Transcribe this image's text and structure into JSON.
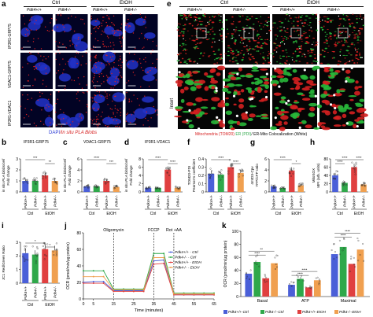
{
  "panels": {
    "a": {
      "letter": "a",
      "groups": [
        "Ctrl",
        "EtOH"
      ],
      "columns": [
        "Pdk4+/+",
        "Pdk4-/-",
        "Pdk4+/+",
        "Pdk4-/-"
      ],
      "rows": [
        "IP3R1-GRP75",
        "VDAC1-GRP75",
        "IP3R1-VDAC1"
      ],
      "caption_dapi": "DAPI",
      "caption_rest": "/In situ PLA Blobs"
    },
    "e": {
      "letter": "e",
      "groups": [
        "Ctrl",
        "EtOH"
      ],
      "columns": [
        "Pdk4+/+",
        "Pdk4-/-",
        "Pdk4+/+",
        "Pdk4-/-"
      ],
      "inset_label": "Inset",
      "legend_mito": "Mitochondria (TOM20)",
      "legend_er": "ER (PDI)",
      "legend_coloc": "/ ER-Mito Colocalization (White)"
    },
    "b": {
      "letter": "b",
      "title": "IP3R1-GRP75",
      "ylabel": "in situ PLA blobs/cell\nFold change",
      "sig": [
        "***",
        "**"
      ]
    },
    "c": {
      "letter": "c",
      "title": "VDAC1-GRP75",
      "ylabel": "in situ PLA blobs/cell\nFold change",
      "sig": [
        "****",
        "***"
      ]
    },
    "d": {
      "letter": "d",
      "title": "IP3R1-VDAC1",
      "ylabel": "in situ PLA blobs/cell\nFold change",
      "sig": [
        "****",
        "****"
      ]
    },
    "f": {
      "letter": "f",
      "ylabel": "TOM20-PDI\nPearson's coefficient",
      "sig": [
        "****",
        "****"
      ]
    },
    "g": {
      "letter": "g",
      "ylabel": "4mtD3-Cpv\nYFP/CFP ratio",
      "sig": [
        "****",
        "*"
      ]
    },
    "h": {
      "letter": "h",
      "ylabel": "MitoSOX\nMFI (arb. units)",
      "sig": [
        "****",
        "****",
        "****"
      ]
    },
    "i": {
      "letter": "i",
      "ylabel": "JC1 Red/Green Ratio",
      "sig": [
        "*",
        "*"
      ]
    },
    "j": {
      "letter": "j",
      "ylabel": "OCR (pmol/min/μg protein)",
      "xlabel": "Time (minutes)",
      "injections": [
        "Oligomycin",
        "FCCP",
        "Rot +AA"
      ],
      "legend": [
        "Pdk4+/+ - Ctrl",
        "Pdk4-/- - Ctrl",
        "Pdk4+/+ - EtOH",
        "Pdk4-/- - EtOH"
      ]
    },
    "k": {
      "letter": "k",
      "ylabel": "OCR (pmol/min/μg protein)",
      "categories": [
        "Basal",
        "ATP",
        "Maximal"
      ],
      "sig": [
        "****",
        "**",
        "****",
        "****",
        "****",
        "****",
        "****",
        "**"
      ],
      "legend": [
        "Pdk4+/+-Ctrl",
        "Pdk4-/--Ctrl",
        "Pdk4+/+-EtOH",
        "Pdk4-/--EtOH"
      ]
    },
    "xcats": [
      "Pdk4+/+",
      "Pdk4-/-",
      "Pdk4+/+",
      "Pdk4-/-"
    ],
    "xgroups": [
      "Ctrl",
      "EtOH"
    ]
  },
  "colors": {
    "wt_ctrl": "#4a5fd8",
    "ko_ctrl": "#2fa84a",
    "wt_etoh": "#e04040",
    "ko_etoh": "#f0a050"
  },
  "chart_data": [
    {
      "type": "bar",
      "id": "b",
      "categories": [
        "Pdk4+/+ Ctrl",
        "Pdk4-/- Ctrl",
        "Pdk4+/+ EtOH",
        "Pdk4-/- EtOH"
      ],
      "values": [
        1.0,
        1.0,
        1.5,
        1.0
      ],
      "ylim": [
        0,
        3
      ],
      "yticks": [
        0,
        1,
        2,
        3
      ]
    },
    {
      "type": "bar",
      "id": "c",
      "categories": [
        "Pdk4+/+ Ctrl",
        "Pdk4-/- Ctrl",
        "Pdk4+/+ EtOH",
        "Pdk4-/- EtOH"
      ],
      "values": [
        1.0,
        1.0,
        2.0,
        0.9
      ],
      "ylim": [
        0,
        6
      ],
      "yticks": [
        0,
        2,
        4,
        6
      ]
    },
    {
      "type": "bar",
      "id": "d",
      "categories": [
        "Pdk4+/+ Ctrl",
        "Pdk4-/- Ctrl",
        "Pdk4+/+ EtOH",
        "Pdk4-/- EtOH"
      ],
      "values": [
        1.0,
        1.0,
        5.4,
        1.0
      ],
      "ylim": [
        0,
        8
      ],
      "yticks": [
        0,
        2,
        4,
        6,
        8
      ]
    },
    {
      "type": "bar",
      "id": "f",
      "categories": [
        "Pdk4+/+ Ctrl",
        "Pdk4-/- Ctrl",
        "Pdk4+/+ EtOH",
        "Pdk4-/- EtOH"
      ],
      "values": [
        0.22,
        0.21,
        0.3,
        0.23
      ],
      "ylim": [
        0,
        0.4
      ],
      "yticks": [
        0.0,
        0.1,
        0.2,
        0.3,
        0.4
      ]
    },
    {
      "type": "bar",
      "id": "g",
      "categories": [
        "Pdk4+/+ Ctrl",
        "Pdk4-/- Ctrl",
        "Pdk4+/+ EtOH",
        "Pdk4-/- EtOH"
      ],
      "values": [
        1.0,
        0.7,
        3.9,
        1.2
      ],
      "ylim": [
        0,
        6
      ],
      "yticks": [
        0,
        2,
        4,
        6
      ]
    },
    {
      "type": "bar",
      "id": "h",
      "categories": [
        "Pdk4+/+ Ctrl",
        "Pdk4-/- Ctrl",
        "Pdk4+/+ EtOH",
        "Pdk4-/- EtOH"
      ],
      "values": [
        40,
        22,
        60,
        18
      ],
      "ylim": [
        0,
        80
      ],
      "yticks": [
        0,
        20,
        40,
        60,
        80
      ]
    },
    {
      "type": "bar",
      "id": "i",
      "categories": [
        "Pdk4+/+ Ctrl",
        "Pdk4-/- Ctrl",
        "Pdk4+/+ EtOH",
        "Pdk4-/- EtOH"
      ],
      "values": [
        2.2,
        2.1,
        2.5,
        2.4
      ],
      "ylim": [
        0,
        3
      ],
      "yticks": [
        0,
        1,
        2,
        3
      ]
    },
    {
      "type": "line",
      "id": "j",
      "x": [
        0,
        5,
        10,
        15,
        20,
        25,
        30,
        35,
        40,
        45,
        50,
        55,
        60,
        65
      ],
      "series": [
        {
          "name": "Pdk4+/+ - Ctrl",
          "values": [
            20,
            21,
            21,
            10,
            10,
            10,
            10,
            46,
            47,
            5,
            5,
            5,
            5,
            5
          ]
        },
        {
          "name": "Pdk4-/- - Ctrl",
          "values": [
            34,
            34,
            34,
            12,
            12,
            12,
            12,
            55,
            55,
            7,
            7,
            7,
            7,
            7
          ]
        },
        {
          "name": "Pdk4+/+ - EtOH",
          "values": [
            19,
            19,
            19,
            9,
            9,
            9,
            9,
            42,
            43,
            5,
            5,
            5,
            5,
            5
          ]
        },
        {
          "name": "Pdk4-/- - EtOH",
          "values": [
            27,
            27,
            27,
            11,
            11,
            11,
            11,
            50,
            50,
            6,
            6,
            6,
            6,
            6
          ]
        }
      ],
      "xlim": [
        0,
        65
      ],
      "ylim": [
        0,
        80
      ],
      "xticks": [
        0,
        5,
        15,
        25,
        35,
        45,
        55,
        65
      ],
      "yticks": [
        0,
        20,
        40,
        60,
        80
      ],
      "markers_at": [
        15,
        35,
        45
      ]
    },
    {
      "type": "bar",
      "id": "k",
      "categories": [
        "Basal",
        "ATP",
        "Maximal"
      ],
      "series": [
        {
          "name": "Pdk4+/+-Ctrl",
          "values": [
            35,
            18,
            65
          ]
        },
        {
          "name": "Pdk4-/--Ctrl",
          "values": [
            53,
            27,
            76
          ]
        },
        {
          "name": "Pdk4+/+-EtOH",
          "values": [
            28,
            14,
            50
          ]
        },
        {
          "name": "Pdk4-/--EtOH",
          "values": [
            51,
            25,
            72
          ]
        }
      ],
      "ylim": [
        0,
        100
      ],
      "yticks": [
        0,
        20,
        40,
        60,
        80,
        100
      ]
    }
  ]
}
